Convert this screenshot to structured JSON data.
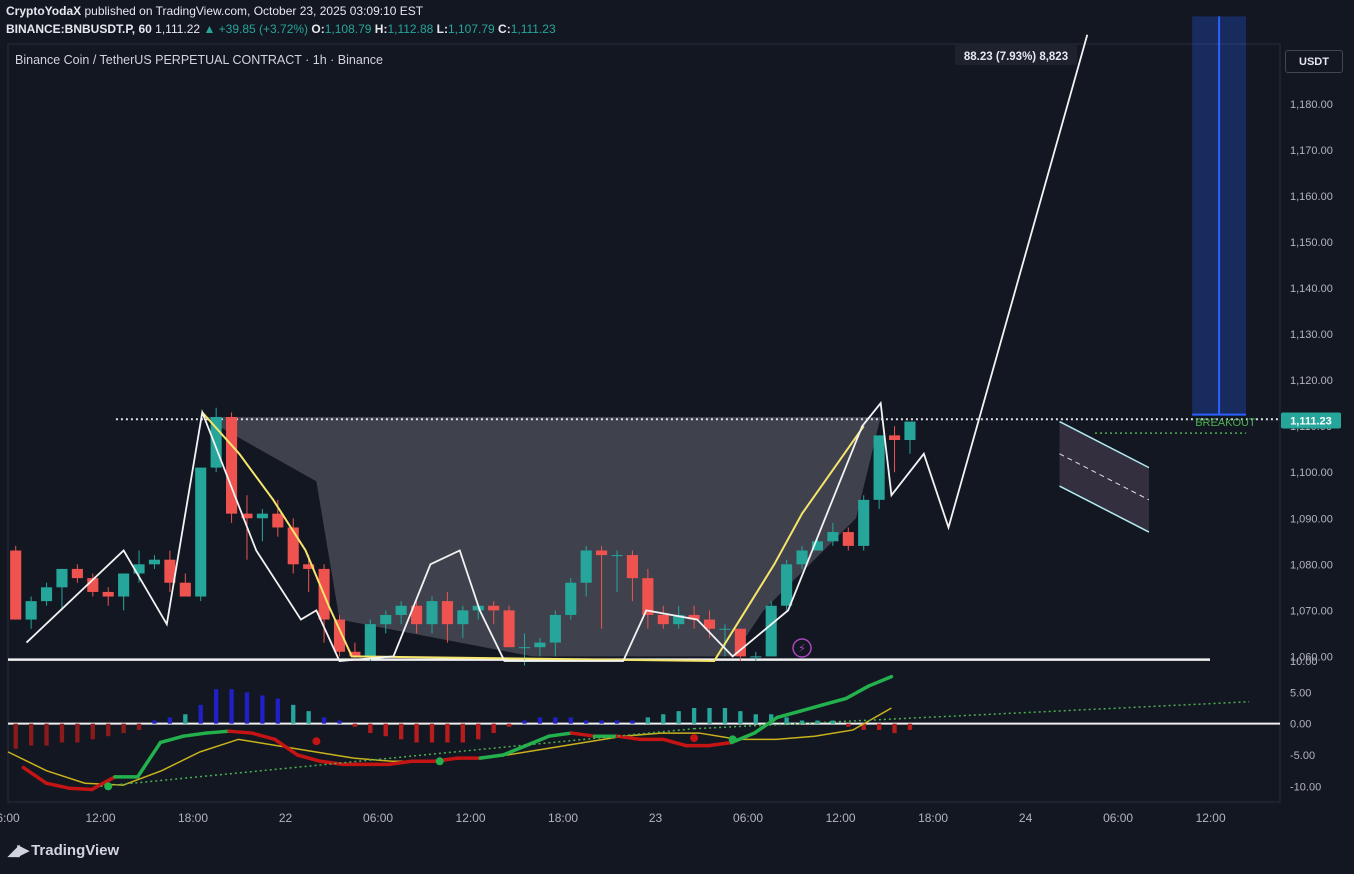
{
  "header": {
    "author": "CryptoYodaX",
    "published": "published on TradingView.com, October 23, 2025 03:09:10 EST",
    "symbol": "BINANCE:BNBUSDT.P, 60",
    "last": "1,111.22",
    "change": "▲ +39.85 (+3.72%)",
    "o_label": "O:",
    "o": "1,108.79",
    "h_label": "H:",
    "h": "1,112.88",
    "l_label": "L:",
    "l": "1,107.79",
    "c_label": "C:",
    "c": "1,111.23"
  },
  "title": "Binance Coin / TetherUS PERPETUAL CONTRACT · 1h · Binance",
  "currency": "USDT",
  "brand": "TradingView",
  "colors": {
    "background": "#131722",
    "up": "#26a69a",
    "down": "#ef5350",
    "line": "#f3f3f3",
    "ma": "#f5e66b",
    "macd_fast": "#22b14c",
    "macd_slow": "#c9b21c",
    "measure": "#2962ff",
    "breakout": "#4caf50"
  },
  "chart_data": [
    {
      "type": "candlestick",
      "y_axis": {
        "ticks": [
          "1,060.00",
          "1,070.00",
          "1,080.00",
          "1,090.00",
          "1,100.00",
          "1,110.00",
          "1,120.00",
          "1,130.00",
          "1,140.00",
          "1,150.00",
          "1,160.00",
          "1,170.00",
          "1,180.00"
        ],
        "range": [
          1059,
          1193
        ]
      },
      "x_axis": {
        "ticks": [
          "6:00",
          "12:00",
          "18:00",
          "22",
          "06:00",
          "12:00",
          "18:00",
          "23",
          "06:00",
          "12:00",
          "18:00",
          "24",
          "06:00",
          "12:00"
        ],
        "hours_from_oct21_06": [
          0,
          6,
          12,
          18,
          24,
          30,
          36,
          42,
          48,
          54,
          60,
          66,
          72,
          78
        ],
        "range": [
          0,
          82.5
        ]
      },
      "ohlc": [
        [
          1083,
          1084,
          1068,
          1068
        ],
        [
          1068,
          1073,
          1066,
          1072
        ],
        [
          1072,
          1076,
          1071,
          1075
        ],
        [
          1075,
          1079,
          1070,
          1079
        ],
        [
          1079,
          1080,
          1076,
          1077
        ],
        [
          1077,
          1078,
          1073,
          1074
        ],
        [
          1074,
          1075,
          1071,
          1073
        ],
        [
          1073,
          1078,
          1070,
          1078
        ],
        [
          1078,
          1083,
          1076,
          1080
        ],
        [
          1080,
          1082,
          1079,
          1081
        ],
        [
          1081,
          1083,
          1074,
          1076
        ],
        [
          1076,
          1078,
          1073,
          1073
        ],
        [
          1073,
          1101,
          1072,
          1101
        ],
        [
          1101,
          1114,
          1100,
          1112
        ],
        [
          1112,
          1113,
          1089,
          1091
        ],
        [
          1091,
          1095,
          1081,
          1090
        ],
        [
          1090,
          1092,
          1085,
          1091
        ],
        [
          1091,
          1094,
          1086,
          1088
        ],
        [
          1088,
          1090,
          1078,
          1080
        ],
        [
          1080,
          1082,
          1074,
          1079
        ],
        [
          1079,
          1080,
          1063,
          1068
        ],
        [
          1068,
          1069,
          1060,
          1061
        ],
        [
          1061,
          1063,
          1059,
          1060
        ],
        [
          1060,
          1068,
          1059,
          1067
        ],
        [
          1067,
          1070,
          1065,
          1069
        ],
        [
          1069,
          1072,
          1067,
          1071
        ],
        [
          1071,
          1072,
          1065,
          1067
        ],
        [
          1067,
          1073,
          1065,
          1072
        ],
        [
          1072,
          1074,
          1063,
          1067
        ],
        [
          1067,
          1071,
          1064,
          1070
        ],
        [
          1070,
          1071,
          1068,
          1071
        ],
        [
          1071,
          1072,
          1067,
          1070
        ],
        [
          1070,
          1071,
          1062,
          1062
        ],
        [
          1062,
          1065,
          1058,
          1062
        ],
        [
          1062,
          1064,
          1060,
          1063
        ],
        [
          1063,
          1070,
          1060,
          1069
        ],
        [
          1069,
          1077,
          1068,
          1076
        ],
        [
          1076,
          1084,
          1073,
          1083
        ],
        [
          1083,
          1084,
          1066,
          1082
        ],
        [
          1082,
          1083,
          1074,
          1082
        ],
        [
          1082,
          1083,
          1072,
          1077
        ],
        [
          1077,
          1079,
          1066,
          1069
        ],
        [
          1069,
          1071,
          1066,
          1067
        ],
        [
          1067,
          1071,
          1066,
          1069
        ],
        [
          1069,
          1071,
          1066,
          1068
        ],
        [
          1068,
          1070,
          1064,
          1066
        ],
        [
          1066,
          1067,
          1060,
          1066
        ],
        [
          1066,
          1066,
          1059,
          1060
        ],
        [
          1060,
          1061,
          1059,
          1060
        ],
        [
          1060,
          1072,
          1060,
          1071
        ],
        [
          1071,
          1081,
          1070,
          1080
        ],
        [
          1080,
          1084,
          1079,
          1083
        ],
        [
          1083,
          1086,
          1083,
          1085
        ],
        [
          1085,
          1089,
          1084,
          1087
        ],
        [
          1087,
          1088,
          1083,
          1084
        ],
        [
          1084,
          1095,
          1083,
          1094
        ],
        [
          1094,
          1108,
          1092,
          1108
        ],
        [
          1108,
          1110,
          1100,
          1107
        ],
        [
          1107,
          1111,
          1104,
          1111
        ]
      ],
      "current_price": "1,111.23",
      "resistance": 1111.5,
      "pattern": {
        "line_prices": [
          1063,
          1083,
          1067,
          1113,
          1083,
          1068,
          1070,
          1059,
          1060,
          1080,
          1083,
          1070,
          1059,
          1059,
          1059,
          1070,
          1068,
          1060,
          1070,
          1110,
          1115,
          1095,
          1104,
          1088,
          1195
        ],
        "ma_prices": [
          1113,
          1104,
          1094,
          1083,
          1071,
          1060,
          1059,
          1080,
          1091,
          1110
        ],
        "channel_upper": [
          [
            68.2,
            1111
          ],
          [
            74.0,
            1101
          ]
        ],
        "channel_lower": [
          [
            68.2,
            1097
          ],
          [
            74.0,
            1087
          ]
        ],
        "breakout_label": "BREAKOUT",
        "breakout_level": 1108.5
      },
      "measure": {
        "label": "88.23 (7.93%) 8,823",
        "from": 1112.5,
        "to": 1199
      }
    },
    {
      "type": "bar",
      "name": "oscillator",
      "y_axis": {
        "ticks": [
          "10.00",
          "5.00",
          "0.00",
          "-5.00",
          "-10.00"
        ],
        "range": [
          -12.5,
          10
        ]
      },
      "histogram": [
        -4,
        -3.5,
        -3.5,
        -3.0,
        -3.0,
        -2.5,
        -2.0,
        -1.5,
        -1.0,
        0.5,
        1.0,
        1.5,
        3.0,
        5.5,
        5.5,
        5.0,
        4.5,
        4.0,
        3.0,
        2.0,
        1.0,
        0.5,
        -0.5,
        -1.5,
        -2.0,
        -2.5,
        -3.0,
        -3.0,
        -3.0,
        -3.0,
        -2.5,
        -1.5,
        -0.5,
        0.5,
        1.0,
        1.0,
        1.0,
        0.5,
        0.5,
        0.5,
        0.5,
        1.0,
        1.5,
        2.0,
        2.5,
        2.5,
        2.5,
        2.0,
        1.5,
        1.5,
        1.0,
        0.5,
        0.5,
        0.5,
        -0.5,
        -1.0,
        -1.0,
        -1.5,
        -1.0
      ],
      "fast_line": [
        -7,
        -9.5,
        -10.3,
        -10.5,
        -8.5,
        -8.5,
        -3,
        -2,
        -1.5,
        -1.2,
        -1.5,
        -2.5,
        -5,
        -6,
        -6.5,
        -6.5,
        -6.5,
        -6,
        -6,
        -5.5,
        -5.5,
        -5,
        -3.5,
        -2,
        -1.5,
        -2,
        -2,
        -2.5,
        -2.5,
        -3.5,
        -3.5,
        -3,
        -1.5,
        1,
        2,
        3,
        4,
        6,
        7.5
      ],
      "slow_line": [
        -4.5,
        -7.5,
        -9.5,
        -9.8,
        -7.5,
        -4.5,
        -2.5,
        -3.5,
        -4.5,
        -5.5,
        -6,
        -6,
        -5.5,
        -5,
        -4,
        -3,
        -2,
        -1.5,
        -1.5,
        -2.5,
        -2.5,
        -2,
        -1,
        2.5
      ],
      "trend_lines": [
        [
          -10,
          -8
        ],
        [
          -2,
          3.5
        ]
      ]
    }
  ]
}
